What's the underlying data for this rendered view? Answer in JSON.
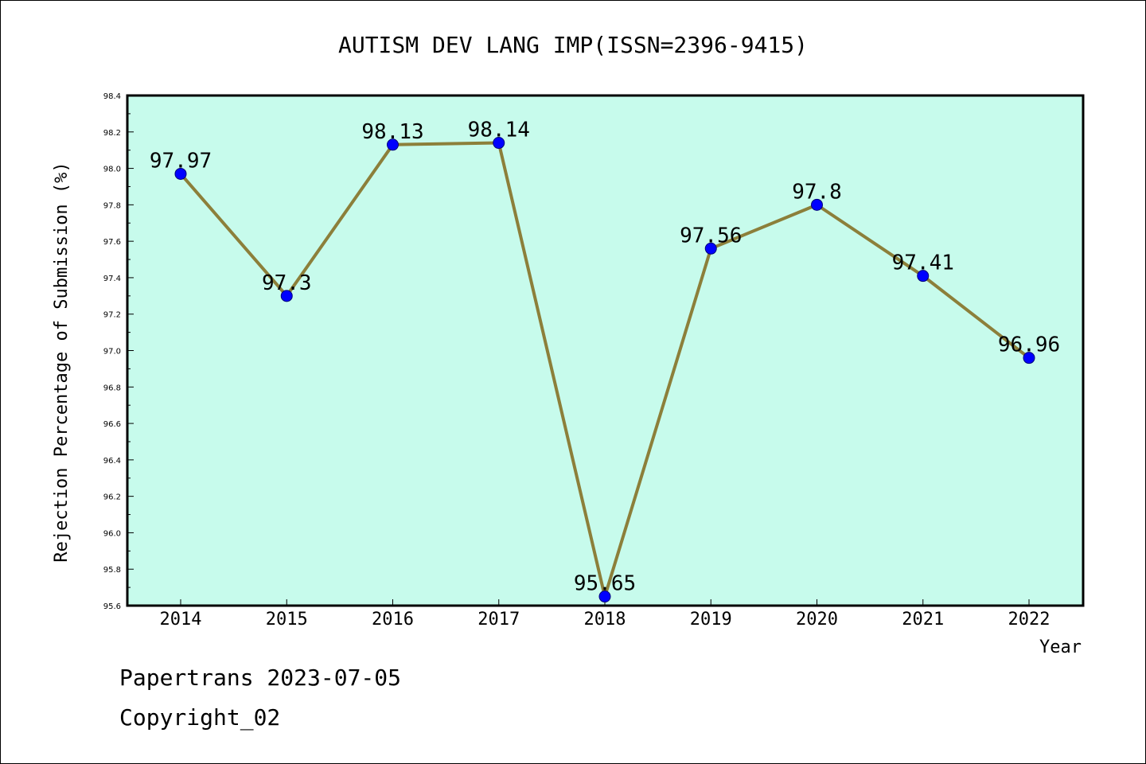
{
  "chart_data": {
    "type": "line",
    "title": "AUTISM DEV LANG IMP(ISSN=2396-9415)",
    "xlabel": "Year",
    "ylabel": "Rejection Percentage of Submission (%)",
    "categories": [
      "2014",
      "2015",
      "2016",
      "2017",
      "2018",
      "2019",
      "2020",
      "2021",
      "2022"
    ],
    "series": [
      {
        "values": [
          97.97,
          97.3,
          98.13,
          98.14,
          95.65,
          97.56,
          97.8,
          97.41,
          96.96
        ],
        "data_labels": [
          "97.97",
          "97.3",
          "98.13",
          "98.14",
          "95.65",
          "97.56",
          "97.8",
          "97.41",
          "96.96"
        ]
      }
    ],
    "ylim": [
      95.6,
      98.4
    ],
    "yticks": [
      "95.6",
      "95.8",
      "96.0",
      "96.2",
      "96.4",
      "96.6",
      "96.8",
      "97.0",
      "97.2",
      "97.4",
      "97.6",
      "97.8",
      "98.0",
      "98.2",
      "98.4"
    ],
    "grid": false,
    "legend": "none",
    "colors": {
      "plot_background": "#c7fbec",
      "line": "#8c7f3a",
      "marker": "#0000ff",
      "axis": "#000000"
    }
  },
  "footer": {
    "line1": "Papertrans 2023-07-05",
    "line2": "Copyright_02"
  }
}
